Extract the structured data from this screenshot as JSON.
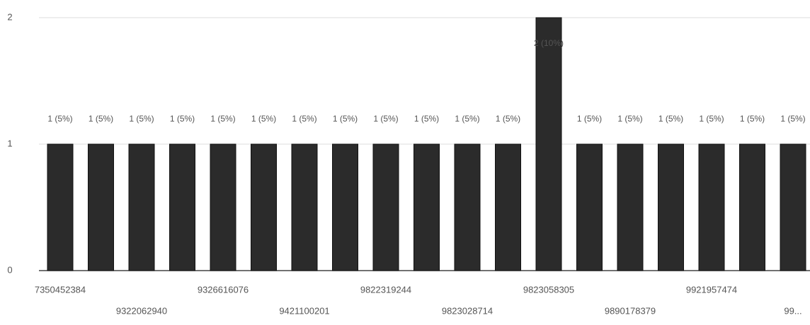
{
  "chart_data": {
    "type": "bar",
    "categories": [
      "7350452384",
      null,
      "9322062940",
      null,
      "9326616076",
      null,
      "9421100201",
      null,
      "9822319244",
      null,
      "9823028714",
      null,
      "9823058305",
      null,
      "9890178379",
      null,
      "9921957474",
      null,
      "99..."
    ],
    "values": [
      1,
      1,
      1,
      1,
      1,
      1,
      1,
      1,
      1,
      1,
      1,
      1,
      2,
      1,
      1,
      1,
      1,
      1,
      1
    ],
    "value_labels": [
      "1 (5%)",
      "1 (5%)",
      "1 (5%)",
      "1 (5%)",
      "1 (5%)",
      "1 (5%)",
      "1 (5%)",
      "1 (5%)",
      "1 (5%)",
      "1 (5%)",
      "1 (5%)",
      "1 (5%)",
      "2 (10%)",
      "1 (5%)",
      "1 (5%)",
      "1 (5%)",
      "1 (5%)",
      "1 (5%)",
      "1 (5%)"
    ],
    "color": "#2b2b2b",
    "ylim": [
      0,
      2
    ],
    "yticks": [
      0,
      1,
      2
    ],
    "grid": true
  }
}
